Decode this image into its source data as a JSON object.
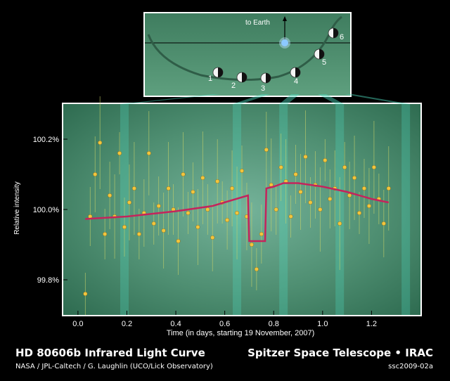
{
  "header": {
    "title": "HD 80606b Infrared Light Curve",
    "credit": "NASA / JPL-Caltech / G. Laughlin (UCO/Lick Observatory)",
    "instrument": "Spitzer Space Telescope • IRAC",
    "image_code": "ssc2009-02a"
  },
  "inset": {
    "to_earth_label": "to Earth",
    "positions": [
      "1",
      "2",
      "3",
      "4",
      "5",
      "6"
    ]
  },
  "colors": {
    "background": "#000000",
    "points": "#f2c53d",
    "model_line": "#c4245c",
    "error_bars": "#c8d36a",
    "highlight_bands": "#4fe0c4"
  },
  "chart_data": {
    "type": "scatter",
    "title": "",
    "xlabel": "Time (in days, starting 19 November, 2007)",
    "ylabel": "Relative intensity",
    "xlim": [
      -0.06,
      1.4
    ],
    "ylim": [
      99.7,
      100.3
    ],
    "xticks": [
      0.0,
      0.2,
      0.4,
      0.6,
      0.8,
      1.0,
      1.2
    ],
    "xtick_labels": [
      "0.0",
      "0.2",
      "0.4",
      "0.6",
      "0.8",
      "1.0",
      "1.2"
    ],
    "yticks": [
      99.8,
      100.0,
      100.2
    ],
    "ytick_labels": [
      "99.8%",
      "100.0%",
      "100.2%"
    ],
    "highlight_times": [
      0.19,
      0.65,
      0.84,
      1.07,
      1.34
    ],
    "model": {
      "name": "Model light curve",
      "x": [
        0.03,
        0.2,
        0.4,
        0.55,
        0.695,
        0.7,
        0.765,
        0.77,
        0.8,
        0.84,
        0.9,
        1.0,
        1.1,
        1.2,
        1.27
      ],
      "y": [
        99.973,
        99.98,
        99.995,
        100.01,
        100.04,
        99.91,
        99.91,
        100.06,
        100.065,
        100.075,
        100.075,
        100.065,
        100.05,
        100.03,
        100.02
      ]
    },
    "series": [
      {
        "name": "Observations",
        "x": [
          0.03,
          0.05,
          0.07,
          0.09,
          0.11,
          0.13,
          0.15,
          0.17,
          0.19,
          0.21,
          0.23,
          0.25,
          0.27,
          0.29,
          0.31,
          0.33,
          0.35,
          0.37,
          0.39,
          0.41,
          0.43,
          0.45,
          0.47,
          0.49,
          0.51,
          0.53,
          0.55,
          0.57,
          0.59,
          0.61,
          0.63,
          0.65,
          0.67,
          0.69,
          0.71,
          0.73,
          0.75,
          0.77,
          0.79,
          0.81,
          0.83,
          0.85,
          0.87,
          0.89,
          0.91,
          0.93,
          0.95,
          0.97,
          0.99,
          1.01,
          1.03,
          1.05,
          1.07,
          1.09,
          1.11,
          1.13,
          1.15,
          1.17,
          1.19,
          1.21,
          1.23,
          1.25,
          1.27
        ],
        "y": [
          99.76,
          99.98,
          100.1,
          100.19,
          99.93,
          100.04,
          99.98,
          100.16,
          99.95,
          100.02,
          100.06,
          99.93,
          99.99,
          100.16,
          99.96,
          100.01,
          99.94,
          100.06,
          100.0,
          99.91,
          100.1,
          99.99,
          100.05,
          99.95,
          100.09,
          100.0,
          99.92,
          100.08,
          100.02,
          99.97,
          100.06,
          99.99,
          100.11,
          99.98,
          99.9,
          99.83,
          99.93,
          100.17,
          100.07,
          100.0,
          100.12,
          100.08,
          99.98,
          100.1,
          100.05,
          100.15,
          100.02,
          100.07,
          100.0,
          100.14,
          100.03,
          100.06,
          99.96,
          100.12,
          100.04,
          100.09,
          99.99,
          100.06,
          100.01,
          100.12,
          100.03,
          99.96,
          100.06
        ]
      }
    ]
  }
}
